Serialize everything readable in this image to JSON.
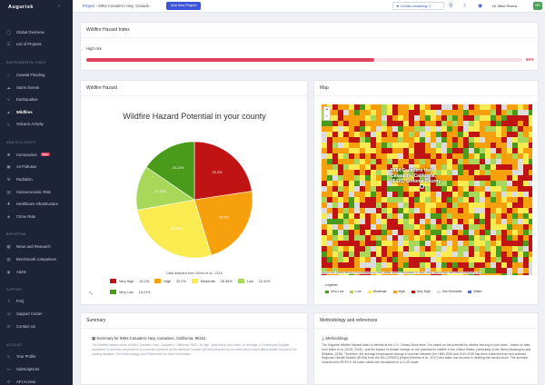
{
  "app": {
    "name": "Augurisk"
  },
  "sidebar": {
    "items_top": [
      {
        "label": "Global Overview",
        "icon": "globe-icon"
      },
      {
        "label": "List of Projects",
        "icon": "list-icon"
      }
    ],
    "section_env": "ENVIRONMENTAL RISKS",
    "env_items": [
      {
        "label": "Coastal Flooding"
      },
      {
        "label": "Storm Events"
      },
      {
        "label": "Earthquakes"
      },
      {
        "label": "Wildfires"
      },
      {
        "label": "Volcanic Activity"
      }
    ],
    "section_health": "HEALTH & SAFETY",
    "health_items": [
      {
        "label": "Coronavirus",
        "badge": "New"
      },
      {
        "label": "Air Pollution"
      },
      {
        "label": "Radiation"
      },
      {
        "label": "Socioeconomic Risk"
      },
      {
        "label": "Healthcare Infrastructure"
      },
      {
        "label": "Crime Rate"
      }
    ],
    "section_reporting": "REPORTING",
    "reporting_items": [
      {
        "label": "News and Research"
      },
      {
        "label": "Benchmark comparison"
      },
      {
        "label": "Alerts"
      }
    ],
    "section_support": "SUPPORT",
    "support_items": [
      {
        "label": "FAQ"
      },
      {
        "label": "Support Center"
      },
      {
        "label": "Contact Us"
      }
    ],
    "section_account": "ACCOUNT",
    "account_items": [
      {
        "label": "Your Profile"
      },
      {
        "label": "Subscriptions"
      },
      {
        "label": "API Access"
      }
    ]
  },
  "topbar": {
    "breadcrumb_root": "Project",
    "breadcrumb_current": "5954 Casadero Hwy, Casade..",
    "add_project": "Add New Project",
    "credits": "Credits remaining: 0",
    "user": "Hi, Mike Rivera",
    "avatar_initials": "MR"
  },
  "risk_index": {
    "title": "Wildfire Hazard Index",
    "label": "High risk",
    "percent_value": 66,
    "percent_text": "66%"
  },
  "hazard": {
    "card_title": "Wildfire Hazard",
    "chart_title": "Wildfire Hazard Potential in your county",
    "source": "Data adapted from Dillon et al., 2015"
  },
  "chart_data": {
    "type": "pie",
    "title": "Wildfire Hazard Potential in your county",
    "categories": [
      "Very High",
      "High",
      "Moderate",
      "Low",
      "Very Low"
    ],
    "values": [
      22.2,
      22.2,
      26.35,
      12.11,
      15.21
    ],
    "slice_labels": [
      "22.2%",
      "22.2%",
      "26.35%",
      "12.11%",
      "15.21%"
    ],
    "legend_values": [
      "22.2%",
      "22.2%",
      "26.35%",
      "12.11%",
      "15.21%"
    ],
    "colors": [
      "#c01414",
      "#f5a00c",
      "#faec50",
      "#a7d85a",
      "#4a9a1c"
    ],
    "legend": "bottom"
  },
  "map": {
    "card_title": "Map",
    "place_label": "5954 Casadero Hwy, Casadero, California, 95421, Sonoma County",
    "attribution": "Source: Esri, USGS | Bureau of Land Management, Esri, HERE, Garmin, INCREMENT P, NGA, USGS | METI/NASA, EPA, USDA | Powered by Esri",
    "legend_title": "Legend",
    "legend": [
      {
        "label": "Very Low",
        "color": "#4a9a1c"
      },
      {
        "label": "Low",
        "color": "#a7d85a"
      },
      {
        "label": "Moderate",
        "color": "#faec50"
      },
      {
        "label": "High",
        "color": "#f5a00c"
      },
      {
        "label": "Very High",
        "color": "#c01414"
      },
      {
        "label": "Non Burnable",
        "color": "#dcdcdc"
      },
      {
        "label": "Water",
        "color": "#4a70d0"
      }
    ]
  },
  "summary": {
    "card_title": "Summary",
    "subtitle": "Summary for 5954 Casadero Hwy, Casadero, California, 95421",
    "text": "The Wildfire hazard score of 5954 Casadero Hwy, Casadero, California, 95421 is High. Note that in your area, on average 1.9 times/year Angular increased. In summer temperature is currently expected by the National Oceanic (NOAA) selected by our team which could affect wildfire hazard in the coming decades. See Methodology and References for more information."
  },
  "methodology": {
    "card_title": "Methodology and references",
    "subtitle": "Methodology",
    "text": "The Augurisk Wildfire Hazard Index is defined at the U.S. Census block level. It is based on the potential for wildfire burning in your block - based on data from Dillon et al. (2015, 2018) - and the impact of climate change on the potential for wildfire in the United States, particularly in the West (Abatzoglou and Williams, 2016). Therefore, the average temperature change in summer between the 1980-2005 and 2019-2035 has been extracted from two selected Regional Climate Models (RCMs) from the NA-CORDEX project (Mearns et al., 2017) and taken into account in defining the hazard score. The scenario considered is RCP4.5. All index values are normalized to a 0-100 scale."
  }
}
